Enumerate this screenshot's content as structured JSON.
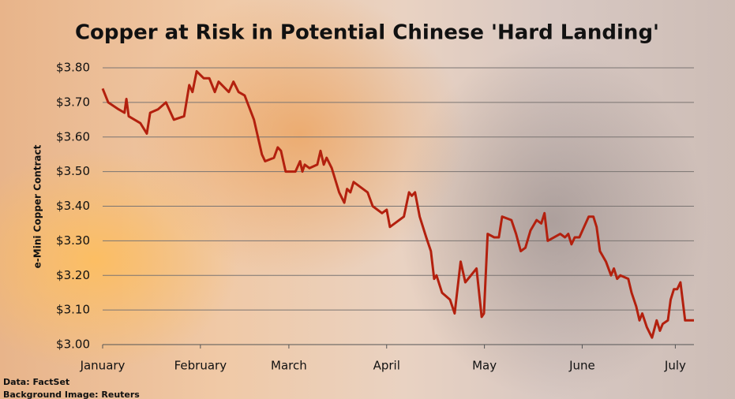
{
  "chart_data": {
    "type": "line",
    "title": "Copper at Risk in Potential Chinese 'Hard Landing'",
    "y_label": "e-Mini Copper Contract",
    "source": "Data: FactSet",
    "background_credit": "Background Image: Reuters",
    "x": [
      0,
      1.2,
      3.4,
      4.7,
      5.1,
      5.6,
      8.1,
      9.5,
      10.2,
      11.9,
      13.6,
      15.3,
      17.5,
      18.6,
      19.3,
      20.2,
      21.7,
      22.9,
      24.1,
      24.9,
      27.1,
      28.1,
      29.2,
      30.5,
      32.5,
      34.2,
      34.9,
      36.8,
      37.6,
      38.3,
      39.3,
      41.4,
      42.4,
      42.9,
      43.4,
      44.4,
      46.1,
      46.8,
      47.5,
      48.1,
      49.2,
      50.8,
      51.9,
      52.5,
      53.2,
      53.9,
      55.9,
      56.9,
      58.0,
      60.0,
      61.0,
      61.7,
      62.7,
      64.7,
      65.8,
      66.4,
      67.1,
      68.1,
      69.5,
      70.5,
      71.2,
      71.7,
      72.9,
      74.6,
      75.6,
      76.9,
      77.9,
      79.7,
      80.3,
      81.4,
      81.9,
      82.7,
      84.1,
      85.1,
      85.8,
      87.8,
      88.8,
      89.8,
      90.8,
      91.9,
      93.2,
      94.2,
      94.9,
      95.6,
      98.3,
      99.3,
      100.0,
      100.7,
      101.4,
      102.4,
      103.4,
      104.4,
      105.4,
      106.1,
      106.8,
      108.1,
      109.2,
      109.8,
      110.5,
      111.2,
      112.9,
      113.6,
      114.6,
      115.3,
      115.9,
      116.9,
      118.0,
      119.0,
      119.7,
      120.3,
      121.4,
      122.0,
      122.7,
      123.4,
      124.1,
      125.1,
      127
    ],
    "series": [
      {
        "name": "e-Mini Copper Contract",
        "color": "#b3200e",
        "values": [
          3.74,
          3.7,
          3.68,
          3.67,
          3.71,
          3.66,
          3.64,
          3.61,
          3.67,
          3.68,
          3.7,
          3.65,
          3.66,
          3.75,
          3.73,
          3.79,
          3.77,
          3.77,
          3.73,
          3.76,
          3.73,
          3.76,
          3.73,
          3.72,
          3.65,
          3.55,
          3.53,
          3.54,
          3.57,
          3.56,
          3.5,
          3.5,
          3.53,
          3.5,
          3.52,
          3.51,
          3.52,
          3.56,
          3.52,
          3.54,
          3.51,
          3.44,
          3.41,
          3.45,
          3.44,
          3.47,
          3.45,
          3.44,
          3.4,
          3.38,
          3.39,
          3.34,
          3.35,
          3.37,
          3.44,
          3.43,
          3.44,
          3.37,
          3.31,
          3.27,
          3.19,
          3.2,
          3.15,
          3.13,
          3.09,
          3.24,
          3.18,
          3.21,
          3.22,
          3.08,
          3.09,
          3.32,
          3.31,
          3.31,
          3.37,
          3.36,
          3.32,
          3.27,
          3.28,
          3.33,
          3.36,
          3.35,
          3.38,
          3.3,
          3.32,
          3.31,
          3.32,
          3.29,
          3.31,
          3.31,
          3.34,
          3.37,
          3.37,
          3.34,
          3.27,
          3.24,
          3.2,
          3.22,
          3.19,
          3.2,
          3.19,
          3.15,
          3.11,
          3.07,
          3.09,
          3.05,
          3.02,
          3.07,
          3.04,
          3.06,
          3.07,
          3.13,
          3.16,
          3.16,
          3.18,
          3.07,
          3.07
        ]
      }
    ],
    "xlim": [
      0,
      127
    ],
    "xticks": [
      {
        "value": 0,
        "label": "January"
      },
      {
        "value": 21,
        "label": "February"
      },
      {
        "value": 40,
        "label": "March"
      },
      {
        "value": 61,
        "label": "April"
      },
      {
        "value": 82,
        "label": "May"
      },
      {
        "value": 103,
        "label": "June"
      },
      {
        "value": 123,
        "label": "July"
      }
    ],
    "ylim": [
      3.0,
      3.8
    ],
    "yticks": [
      {
        "value": 3.0,
        "label": "$3.00"
      },
      {
        "value": 3.1,
        "label": "$3.10"
      },
      {
        "value": 3.2,
        "label": "$3.20"
      },
      {
        "value": 3.3,
        "label": "$3.30"
      },
      {
        "value": 3.4,
        "label": "$3.40"
      },
      {
        "value": 3.5,
        "label": "$3.50"
      },
      {
        "value": 3.6,
        "label": "$3.60"
      },
      {
        "value": 3.7,
        "label": "$3.70"
      },
      {
        "value": 3.8,
        "label": "$3.80"
      }
    ],
    "grid": true
  }
}
